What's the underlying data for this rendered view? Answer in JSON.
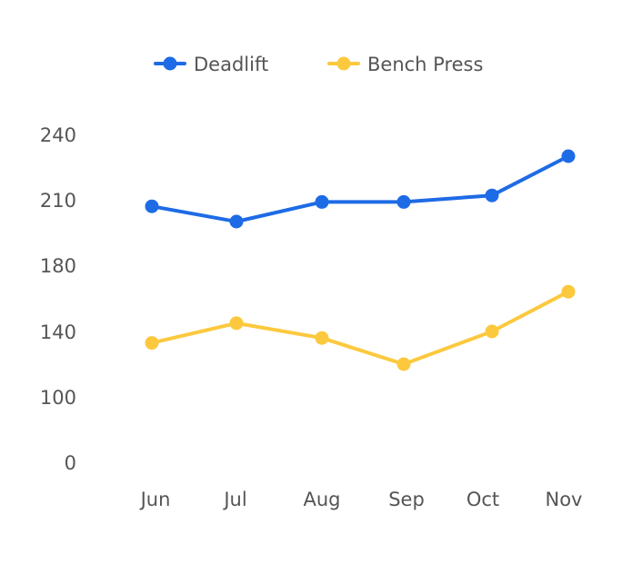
{
  "chart_data": {
    "type": "line",
    "categories": [
      "Jun",
      "Jul",
      "Aug",
      "Sep",
      "Oct",
      "Nov"
    ],
    "y_ticks": [
      0,
      100,
      140,
      180,
      210,
      240
    ],
    "series": [
      {
        "name": "Deadlift",
        "color": "#1e6be6",
        "values": [
          207,
          200,
          209,
          209,
          212,
          230
        ]
      },
      {
        "name": "Bench Press",
        "color": "#fcc93e",
        "values": [
          133,
          145,
          136,
          120,
          140,
          164
        ]
      }
    ],
    "legend_position": "top",
    "grid": false
  }
}
